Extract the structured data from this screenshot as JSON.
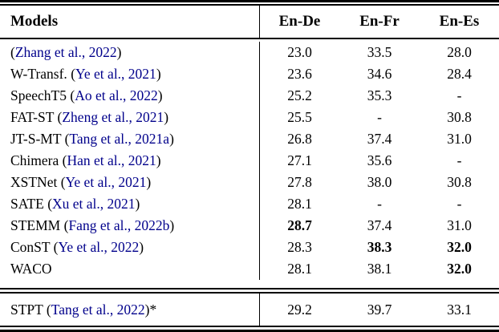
{
  "colors": {
    "link_navy": "#00008B",
    "text": "#000000",
    "rule": "#000000"
  },
  "table": {
    "paren_open": "(",
    "paren_close": ")",
    "columns": [
      "Models",
      "En-De",
      "En-Fr",
      "En-Es"
    ],
    "rows": [
      {
        "prefix": "",
        "citation": "Zhang et al., 2022",
        "suffix": "",
        "en_de": "23.0",
        "en_fr": "33.5",
        "en_es": "28.0"
      },
      {
        "prefix": "W-Transf. ",
        "citation": "Ye et al., 2021",
        "suffix": "",
        "en_de": "23.6",
        "en_fr": "34.6",
        "en_es": "28.4"
      },
      {
        "prefix": "SpeechT5 ",
        "citation": "Ao et al., 2022",
        "suffix": "",
        "en_de": "25.2",
        "en_fr": "35.3",
        "en_es": "-"
      },
      {
        "prefix": "FAT-ST ",
        "citation": "Zheng et al., 2021",
        "suffix": "",
        "en_de": "25.5",
        "en_fr": "-",
        "en_es": "30.8"
      },
      {
        "prefix": "JT-S-MT ",
        "citation": "Tang et al., 2021a",
        "suffix": "",
        "en_de": "26.8",
        "en_fr": "37.4",
        "en_es": "31.0"
      },
      {
        "prefix": "Chimera ",
        "citation": "Han et al., 2021",
        "suffix": "",
        "en_de": "27.1",
        "en_fr": "35.6",
        "en_es": "-"
      },
      {
        "prefix": "XSTNet ",
        "citation": "Ye et al., 2021",
        "suffix": "",
        "en_de": "27.8",
        "en_fr": "38.0",
        "en_es": "30.8"
      },
      {
        "prefix": "SATE ",
        "citation": "Xu et al., 2021",
        "suffix": "",
        "en_de": "28.1",
        "en_fr": "-",
        "en_es": "-"
      },
      {
        "prefix": "STEMM ",
        "citation": "Fang et al., 2022b",
        "suffix": "",
        "en_de": "28.7",
        "en_de_bold": true,
        "en_fr": "37.4",
        "en_es": "31.0"
      },
      {
        "prefix": "ConST ",
        "citation": "Ye et al., 2022",
        "suffix": "",
        "en_de": "28.3",
        "en_fr": "38.3",
        "en_fr_bold": true,
        "en_es": "32.0",
        "en_es_bold": true
      },
      {
        "prefix": "WACO",
        "citation": "",
        "suffix": "",
        "en_de": "28.1",
        "en_fr": "38.1",
        "en_es": "32.0",
        "en_es_bold": true
      }
    ],
    "footer": {
      "prefix": "STPT ",
      "citation": "Tang et al., 2022",
      "suffix": "*",
      "en_de": "29.2",
      "en_fr": "39.7",
      "en_es": "33.1"
    }
  }
}
